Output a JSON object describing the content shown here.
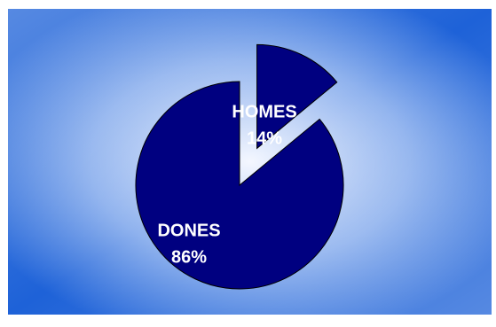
{
  "chart_data": {
    "type": "pie",
    "slices": [
      {
        "label": "DONES",
        "value": 86,
        "value_label": "86%",
        "exploded": false
      },
      {
        "label": "HOMES",
        "value": 14,
        "value_label": "14%",
        "exploded": true
      }
    ],
    "start_angle_deg": 0,
    "direction": "counterclockwise-from-top",
    "title": "",
    "legend": "none"
  },
  "colors": {
    "slice_fill": "#000080",
    "slice_stroke": "#000000",
    "label_text": "#ffffff",
    "background_edge": "#1e62d8",
    "background_center": "#f4f7ff"
  }
}
